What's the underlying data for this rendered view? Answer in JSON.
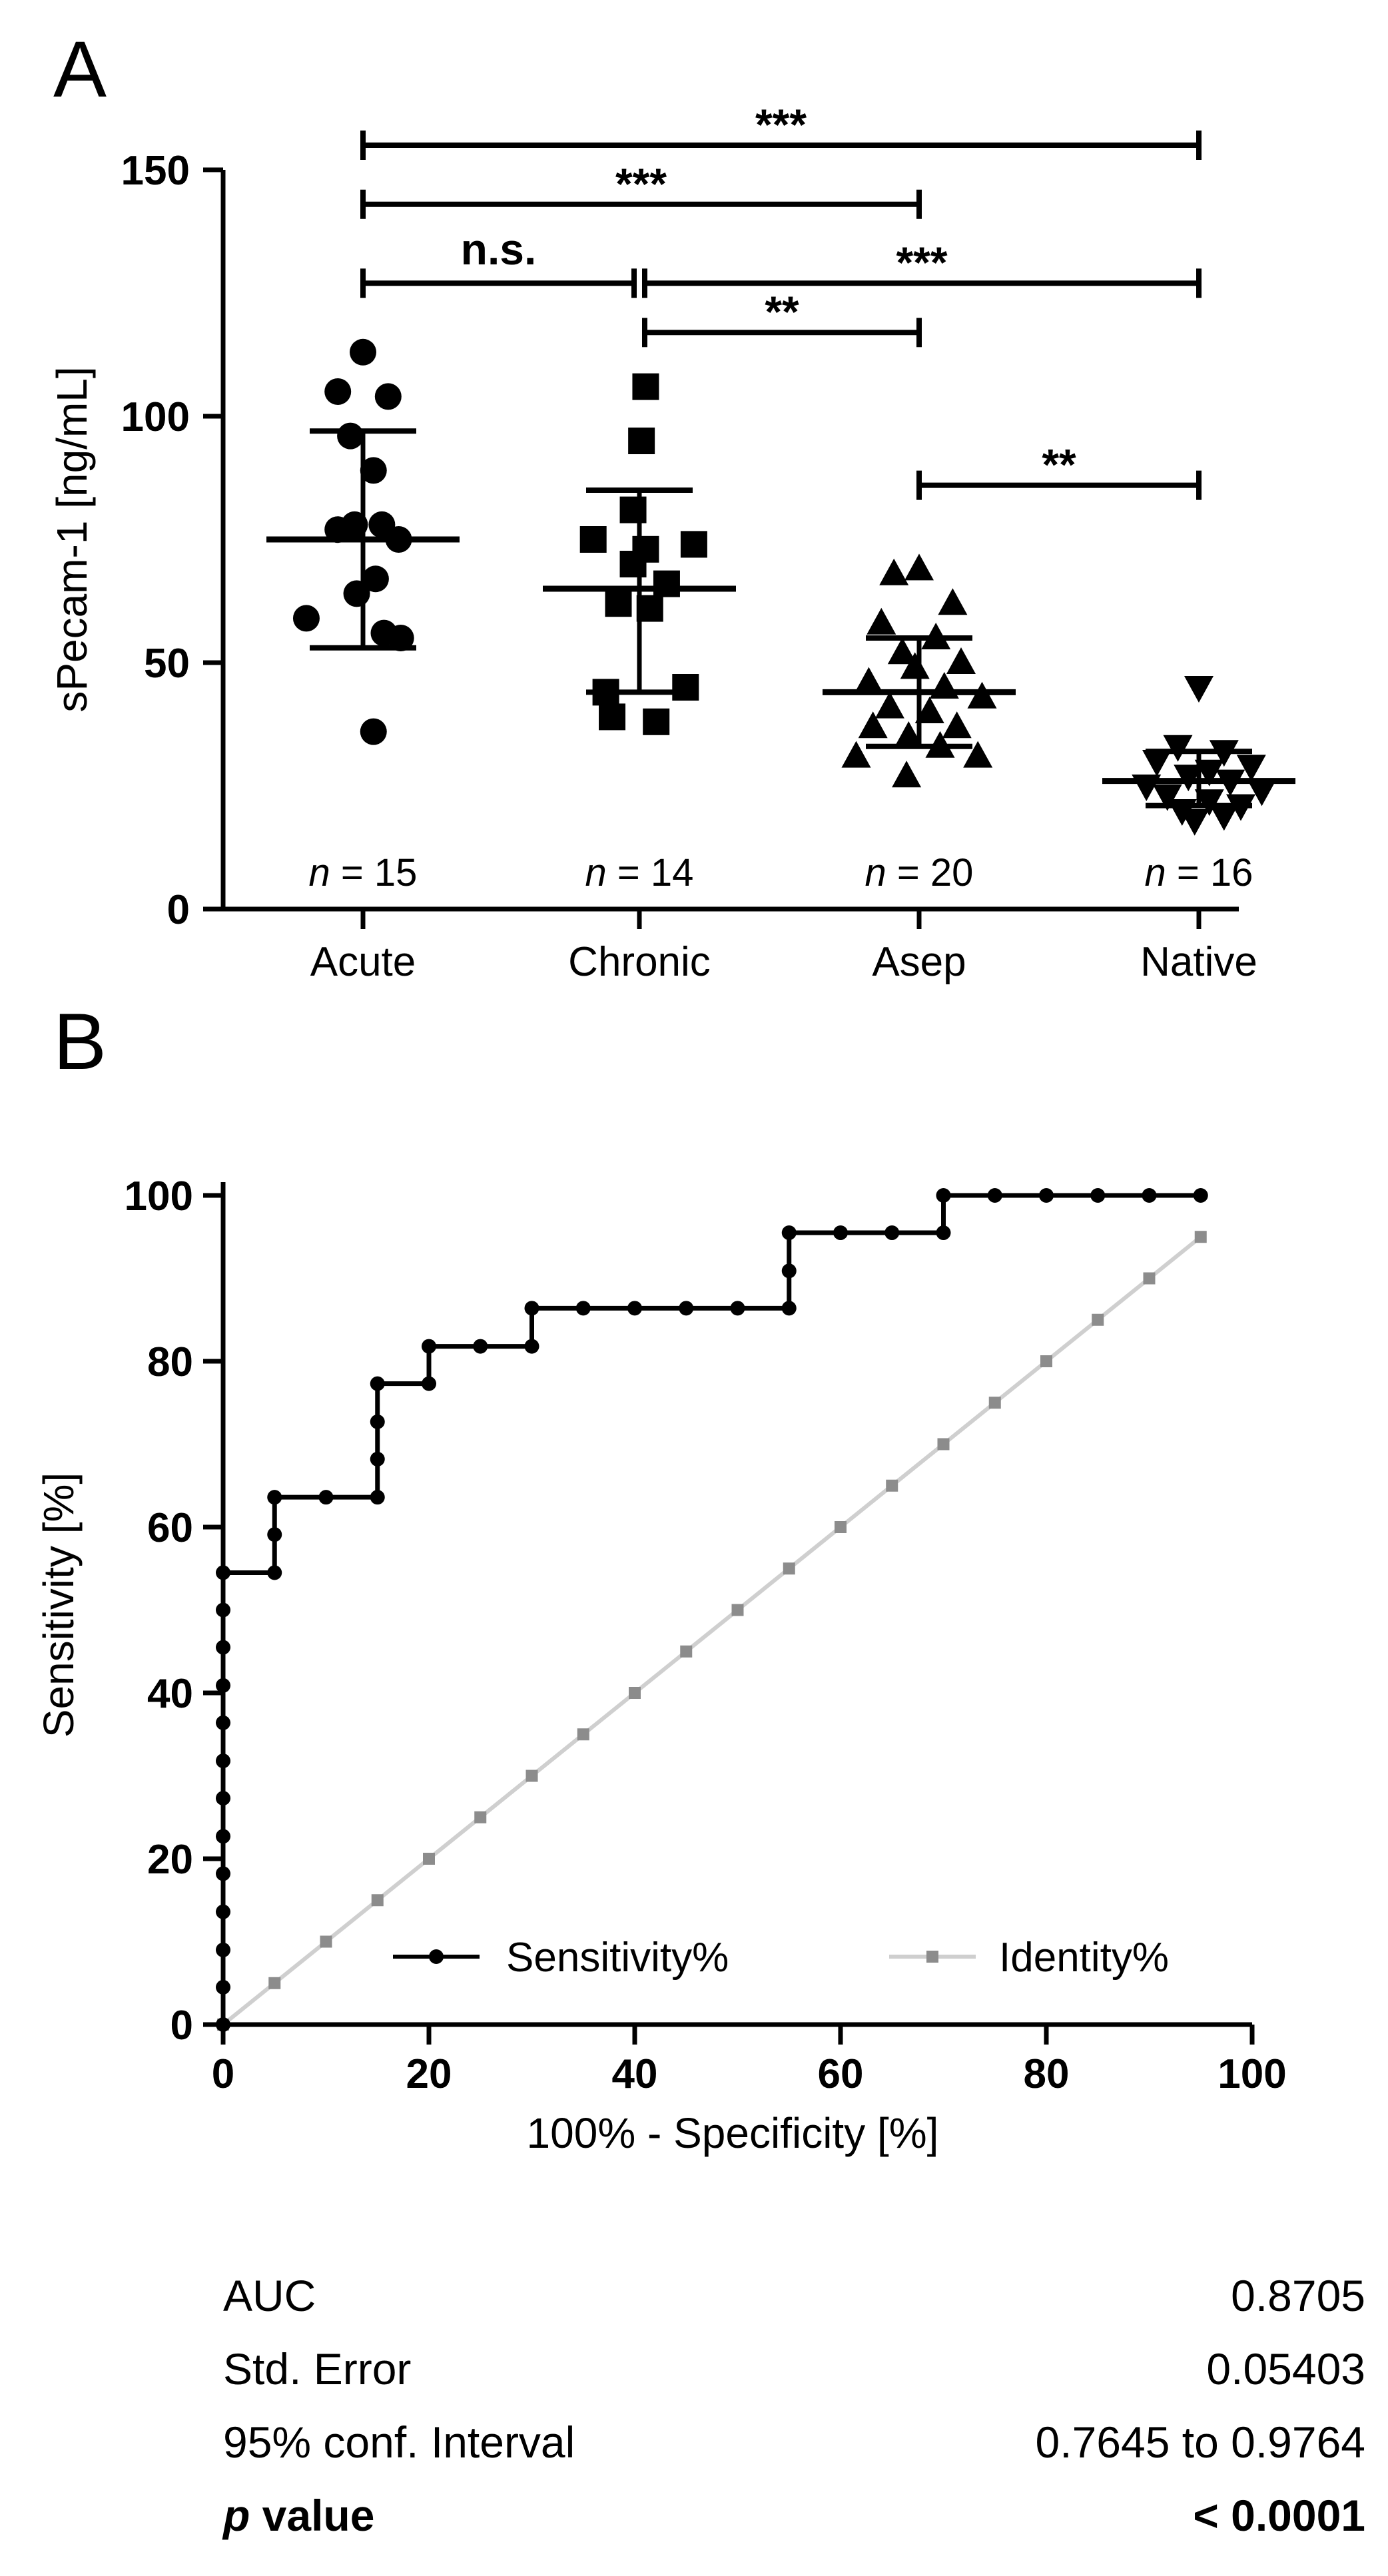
{
  "panel_a": {
    "letter": "A",
    "chart_data": {
      "type": "scatter",
      "title": "",
      "xlabel": "",
      "ylabel": "sPecam-1 [ng/mL]",
      "ylim": [
        0,
        150
      ],
      "yticks": [
        0,
        50,
        100,
        150
      ],
      "categories": [
        "Acute",
        "Chronic",
        "Asep",
        "Native"
      ],
      "groups": [
        {
          "name": "Acute",
          "marker": "circle",
          "n_label": "n = 15",
          "mean": 75,
          "sd_upper": 97,
          "sd_lower": 53,
          "points": [
            [
              0,
              113
            ],
            [
              -0.12,
              105
            ],
            [
              0.12,
              104
            ],
            [
              -0.06,
              96
            ],
            [
              0.05,
              89
            ],
            [
              -0.12,
              77
            ],
            [
              -0.04,
              78
            ],
            [
              0.09,
              78
            ],
            [
              0.17,
              75
            ],
            [
              0.06,
              67
            ],
            [
              -0.03,
              64
            ],
            [
              -0.27,
              59
            ],
            [
              0.1,
              56
            ],
            [
              0.18,
              55
            ],
            [
              0.05,
              36
            ]
          ]
        },
        {
          "name": "Chronic",
          "marker": "square",
          "n_label": "n = 14",
          "mean": 65,
          "sd_upper": 85,
          "sd_lower": 44,
          "points": [
            [
              0.03,
              106
            ],
            [
              0.01,
              95
            ],
            [
              -0.03,
              81
            ],
            [
              -0.22,
              75
            ],
            [
              0.26,
              74
            ],
            [
              0.03,
              73
            ],
            [
              -0.03,
              70
            ],
            [
              0.13,
              66
            ],
            [
              -0.1,
              62
            ],
            [
              0.05,
              61
            ],
            [
              -0.16,
              44
            ],
            [
              0.22,
              45
            ],
            [
              -0.13,
              39
            ],
            [
              0.08,
              38
            ]
          ]
        },
        {
          "name": "Asep",
          "marker": "triangle-up",
          "n_label": "n = 20",
          "mean": 44,
          "sd_upper": 55,
          "sd_lower": 33,
          "points": [
            [
              0,
              69
            ],
            [
              -0.12,
              68
            ],
            [
              0.16,
              62
            ],
            [
              -0.18,
              58
            ],
            [
              0.08,
              55
            ],
            [
              -0.08,
              52
            ],
            [
              0.2,
              50
            ],
            [
              -0.02,
              49
            ],
            [
              -0.24,
              46
            ],
            [
              0.12,
              45
            ],
            [
              0.3,
              43
            ],
            [
              -0.14,
              41
            ],
            [
              0.05,
              40
            ],
            [
              -0.22,
              37
            ],
            [
              0.18,
              37
            ],
            [
              -0.05,
              35
            ],
            [
              0.1,
              33
            ],
            [
              -0.3,
              31
            ],
            [
              0.28,
              31
            ],
            [
              -0.06,
              27
            ]
          ]
        },
        {
          "name": "Native",
          "marker": "triangle-down",
          "n_label": "n = 16",
          "mean": 26,
          "sd_upper": 32,
          "sd_lower": 21,
          "points": [
            [
              0,
              45
            ],
            [
              -0.1,
              33
            ],
            [
              0.12,
              32
            ],
            [
              -0.2,
              30
            ],
            [
              0.25,
              29
            ],
            [
              0.05,
              28
            ],
            [
              -0.05,
              27
            ],
            [
              0.15,
              26
            ],
            [
              -0.25,
              25
            ],
            [
              0.3,
              24
            ],
            [
              -0.15,
              23
            ],
            [
              0.05,
              22
            ],
            [
              0.2,
              21
            ],
            [
              -0.08,
              20
            ],
            [
              0.12,
              19
            ],
            [
              -0.02,
              18
            ]
          ]
        }
      ],
      "comparisons": [
        {
          "from": 0,
          "to": 3,
          "y": 155,
          "label": "***"
        },
        {
          "from": 0,
          "to": 2,
          "y": 143,
          "label": "***"
        },
        {
          "from": 0,
          "to": 1,
          "y": 127,
          "label": "n.s."
        },
        {
          "from": 1,
          "to": 3,
          "y": 127,
          "label": "***"
        },
        {
          "from": 1,
          "to": 2,
          "y": 117,
          "label": "**"
        },
        {
          "from": 2,
          "to": 3,
          "y": 86,
          "label": "**"
        }
      ]
    }
  },
  "panel_b": {
    "letter": "B",
    "chart_data": {
      "type": "line",
      "title": "",
      "xlabel": "100% - Specificity [%]",
      "ylabel": "Sensitivity [%]",
      "xlim": [
        0,
        100
      ],
      "ylim": [
        0,
        100
      ],
      "xticks": [
        0,
        20,
        40,
        60,
        80,
        100
      ],
      "yticks": [
        0,
        20,
        40,
        60,
        80,
        100
      ],
      "series": [
        {
          "name": "Sensitivity%",
          "color": "#000000",
          "marker": "circle",
          "x": [
            0,
            0,
            0,
            0,
            0,
            0,
            0,
            0,
            0,
            0,
            0,
            0,
            0,
            5,
            5,
            5,
            10,
            15,
            15,
            15,
            15,
            20,
            20,
            25,
            30,
            30,
            35,
            40,
            45,
            50,
            55,
            55,
            55,
            60,
            65,
            70,
            70,
            75,
            80,
            85,
            90,
            95
          ],
          "y": [
            0,
            4.5,
            9,
            13.6,
            18.2,
            22.7,
            27.3,
            31.8,
            36.4,
            40.9,
            45.5,
            50,
            54.5,
            54.5,
            59.1,
            63.6,
            63.6,
            63.6,
            68.2,
            72.7,
            77.3,
            77.3,
            81.8,
            81.8,
            81.8,
            86.4,
            86.4,
            86.4,
            86.4,
            86.4,
            86.4,
            90.9,
            95.5,
            95.5,
            95.5,
            95.5,
            100,
            100,
            100,
            100,
            100,
            100
          ]
        },
        {
          "name": "Identity%",
          "color": "#8c8c8c",
          "marker": "square",
          "x": [
            0,
            5,
            10,
            15,
            20,
            25,
            30,
            35,
            40,
            45,
            50,
            55,
            60,
            65,
            70,
            75,
            80,
            85,
            90,
            95
          ],
          "y": [
            0,
            5,
            10,
            15,
            20,
            25,
            30,
            35,
            40,
            45,
            50,
            55,
            60,
            65,
            70,
            75,
            80,
            85,
            90,
            95
          ]
        }
      ]
    },
    "stats": {
      "auc_label": "AUC",
      "auc_value": "0.8705",
      "se_label": "Std. Error",
      "se_value": "0.05403",
      "ci_label": "95% conf. Interval",
      "ci_value": "0.7645 to 0.9764",
      "p_symbol": "p",
      "p_label": " value",
      "p_value": "< 0.0001"
    }
  }
}
